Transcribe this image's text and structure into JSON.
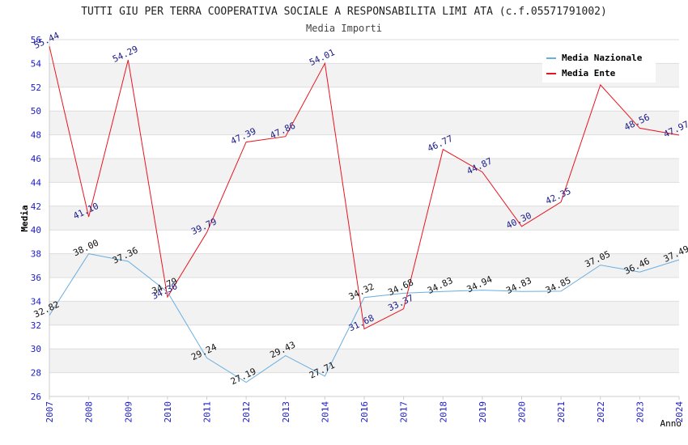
{
  "chart_data": {
    "type": "line",
    "title": "TUTTI GIU PER TERRA COOPERATIVA SOCIALE A RESPONSABILITA LIMI ATA (c.f.05571791002)",
    "subtitle": "Media Importi",
    "xlabel": "Anno",
    "ylabel": "Media",
    "ylim": [
      26,
      56
    ],
    "yticks": [
      26,
      28,
      30,
      32,
      34,
      36,
      38,
      40,
      42,
      44,
      46,
      48,
      50,
      52,
      54,
      56
    ],
    "categories": [
      "2007",
      "2008",
      "2009",
      "2010",
      "2011",
      "2012",
      "2013",
      "2014",
      "2016",
      "2017",
      "2018",
      "2019",
      "2020",
      "2021",
      "2022",
      "2023",
      "2024"
    ],
    "grid": true,
    "legend_position": "top-right",
    "series": [
      {
        "name": "Media Nazionale",
        "color": "#6aaee0",
        "values": [
          32.82,
          38.0,
          37.36,
          34.79,
          29.24,
          27.19,
          29.43,
          27.71,
          34.32,
          34.68,
          34.83,
          34.94,
          34.83,
          34.85,
          37.05,
          36.46,
          37.49
        ],
        "labels": [
          "32.82",
          "38.00",
          "37.36",
          "34.79",
          "29.24",
          "27.19",
          "29.43",
          "27.71",
          "34.32",
          "34.68",
          "34.83",
          "34.94",
          "34.83",
          "34.85",
          "37.05",
          "36.46",
          "37.49"
        ]
      },
      {
        "name": "Media Ente",
        "color": "#e8141e",
        "values": [
          55.44,
          41.1,
          54.29,
          34.36,
          39.79,
          47.39,
          47.86,
          54.01,
          31.68,
          33.37,
          46.77,
          44.87,
          40.3,
          42.35,
          52.2,
          48.56,
          47.97
        ],
        "labels": [
          "55.44",
          "41.10",
          "54.29",
          "34.36",
          "39.79",
          "47.39",
          "47.86",
          "54.01",
          "31.68",
          "33.37",
          "46.77",
          "44.87",
          "40.30",
          "42.35",
          "",
          "48.56",
          "47.97"
        ]
      }
    ]
  }
}
